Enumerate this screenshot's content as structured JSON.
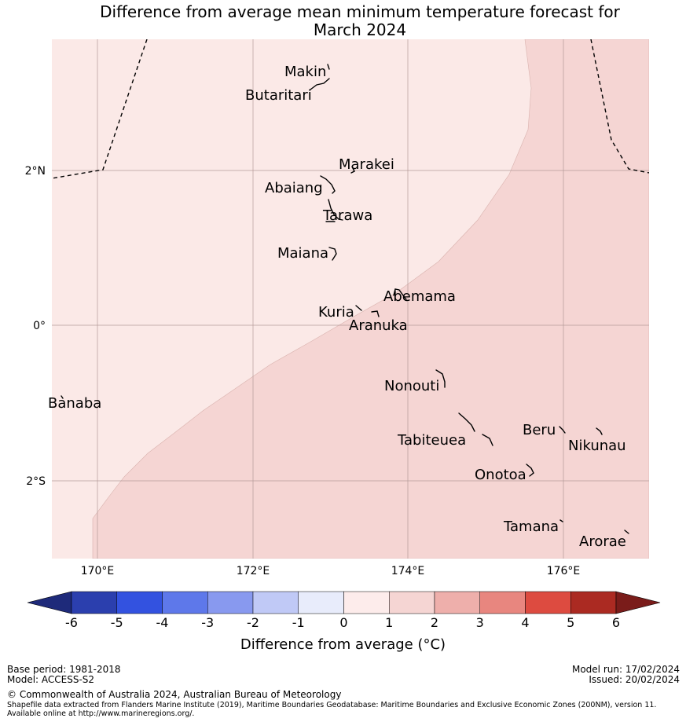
{
  "title_line1": "Difference from average mean minimum temperature forecast for",
  "title_line2": "March 2024",
  "map": {
    "lon_range": [
      169.4,
      177.1
    ],
    "lat_range": [
      -3.0,
      3.7
    ],
    "lon_ticks": [
      {
        "value": 170,
        "label": "170°E"
      },
      {
        "value": 172,
        "label": "172°E"
      },
      {
        "value": 174,
        "label": "174°E"
      },
      {
        "value": 176,
        "label": "176°E"
      }
    ],
    "lat_ticks": [
      {
        "value": 2,
        "label": "2°N"
      },
      {
        "value": 0,
        "label": "0°"
      },
      {
        "value": -2,
        "label": "2°S"
      }
    ],
    "regions": [
      {
        "category": "0 to 1",
        "color": "#fbe9e7"
      },
      {
        "category": "1 to 2",
        "color": "#f5d5d3"
      }
    ],
    "places": [
      {
        "name": "Makin",
        "lon": 172.95,
        "lat": 3.3
      },
      {
        "name": "Butaritari",
        "lon": 172.8,
        "lat": 3.05
      },
      {
        "name": "Marakei",
        "lon": 173.3,
        "lat": 2.0
      },
      {
        "name": "Abaiang",
        "lon": 173.0,
        "lat": 1.8
      },
      {
        "name": "Tarawa",
        "lon": 173.05,
        "lat": 1.4
      },
      {
        "name": "Maiana",
        "lon": 173.0,
        "lat": 0.92
      },
      {
        "name": "Abemama",
        "lon": 173.85,
        "lat": 0.4
      },
      {
        "name": "Kuria",
        "lon": 173.4,
        "lat": 0.22
      },
      {
        "name": "Aranuka",
        "lon": 173.6,
        "lat": 0.17
      },
      {
        "name": "Nonouti",
        "lon": 174.4,
        "lat": -0.65
      },
      {
        "name": "Banaba",
        "lon": 169.55,
        "lat": -0.85
      },
      {
        "name": "Tabiteuea",
        "lon": 174.9,
        "lat": -1.3
      },
      {
        "name": "Beru",
        "lon": 175.98,
        "lat": -1.33
      },
      {
        "name": "Nikunau",
        "lon": 176.45,
        "lat": -1.35
      },
      {
        "name": "Onotoa",
        "lon": 175.55,
        "lat": -1.85
      },
      {
        "name": "Tamana",
        "lon": 175.98,
        "lat": -2.5
      },
      {
        "name": "Arorae",
        "lon": 176.8,
        "lat": -2.65
      }
    ]
  },
  "colorbar": {
    "ticks": [
      "-6",
      "-5",
      "-4",
      "-3",
      "-2",
      "-1",
      "0",
      "1",
      "2",
      "3",
      "4",
      "5",
      "6"
    ],
    "under_color": "#1e2a7a",
    "over_color": "#7a1c1a",
    "colors": [
      "#2b3fae",
      "#3352e0",
      "#5e78ea",
      "#8899ef",
      "#c0c9f6",
      "#e8ecfb",
      "#fdeceb",
      "#f5d5d3",
      "#eeafab",
      "#e8867f",
      "#dd4b40",
      "#ab2a22"
    ],
    "label": "Difference from average (°C)"
  },
  "footer": {
    "base_period": "Base period: 1981-2018",
    "model": "Model: ACCESS-S2",
    "model_run": "Model run: 17/02/2024",
    "issued": "Issued: 20/02/2024",
    "copyright": "© Commonwealth of Australia 2024, Australian Bureau of Meteorology",
    "shapefile": "Shapefile data extracted from Flanders Marine Institute (2019), Maritime Boundaries Geodatabase: Maritime Boundaries and Exclusive Economic Zones (200NM), version 11. Available online at http://www.marineregions.org/."
  }
}
